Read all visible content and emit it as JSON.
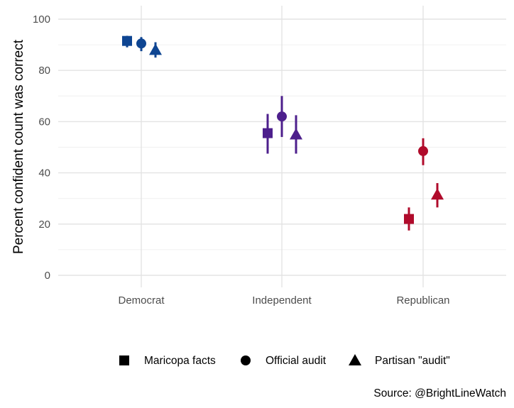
{
  "chart_data": {
    "type": "scatter",
    "title": "",
    "xlabel": "",
    "ylabel": "Percent confident count was correct",
    "ylim": [
      0,
      105
    ],
    "yticks": [
      0,
      20,
      40,
      60,
      80,
      100
    ],
    "grid": true,
    "categories": [
      "Democrat",
      "Independent",
      "Republican"
    ],
    "category_colors": [
      "#0e4592",
      "#4d1f8c",
      "#b00b2b"
    ],
    "series": [
      {
        "name": "Maricopa facts",
        "shape": "square",
        "values": [
          91.5,
          55.5,
          22
        ],
        "lower": [
          89,
          47.5,
          17.5
        ],
        "upper": [
          93.5,
          63,
          26.5
        ]
      },
      {
        "name": "Official audit",
        "shape": "circle",
        "values": [
          90.5,
          62,
          48.5
        ],
        "lower": [
          87.5,
          54,
          43
        ],
        "upper": [
          93,
          70,
          53.5
        ]
      },
      {
        "name": "Partisan \"audit\"",
        "shape": "triangle",
        "values": [
          88,
          55,
          31.5
        ],
        "lower": [
          85,
          47.5,
          26.5
        ],
        "upper": [
          91,
          62.5,
          36
        ]
      }
    ],
    "legend_position": "bottom",
    "source": "Source: @BrightLineWatch"
  }
}
